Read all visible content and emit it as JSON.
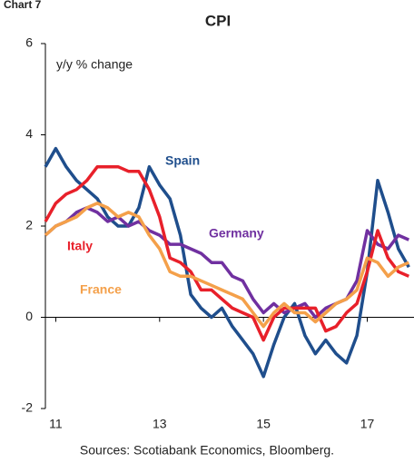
{
  "chart_data": {
    "type": "line",
    "chart_label": "Chart 7",
    "title": "CPI",
    "y_label": "y/y % change",
    "source": "Sources: Scotiabank Economics, Bloomberg.",
    "x": [
      10.8,
      11.0,
      11.2,
      11.4,
      11.6,
      11.8,
      12.0,
      12.2,
      12.4,
      12.6,
      12.8,
      13.0,
      13.2,
      13.4,
      13.6,
      13.8,
      14.0,
      14.2,
      14.4,
      14.6,
      14.8,
      15.0,
      15.2,
      15.4,
      15.6,
      15.8,
      16.0,
      16.2,
      16.4,
      16.6,
      16.8,
      17.0,
      17.2,
      17.4,
      17.6,
      17.8
    ],
    "xlim": [
      10.8,
      17.9
    ],
    "xticks": [
      11,
      13,
      15,
      17
    ],
    "ylim": [
      -2,
      6
    ],
    "yticks": [
      -2,
      0,
      2,
      4,
      6
    ],
    "series": [
      {
        "name": "Spain",
        "color": "#1f4e8c",
        "values": [
          3.3,
          3.7,
          3.3,
          3.0,
          2.8,
          2.6,
          2.2,
          2.0,
          2.0,
          2.4,
          3.3,
          2.9,
          2.6,
          1.8,
          0.5,
          0.2,
          0.0,
          0.2,
          -0.2,
          -0.5,
          -0.8,
          -1.3,
          -0.6,
          0.0,
          0.3,
          -0.4,
          -0.8,
          -0.5,
          -0.8,
          -1.0,
          -0.4,
          1.0,
          3.0,
          2.3,
          1.5,
          1.1
        ]
      },
      {
        "name": "Germany",
        "color": "#7030a0",
        "values": [
          1.8,
          2.0,
          2.1,
          2.3,
          2.4,
          2.3,
          2.1,
          2.2,
          2.0,
          2.1,
          1.9,
          1.8,
          1.6,
          1.6,
          1.5,
          1.4,
          1.2,
          1.2,
          0.9,
          0.8,
          0.4,
          0.1,
          0.3,
          0.1,
          0.2,
          0.3,
          0.0,
          0.2,
          0.3,
          0.4,
          0.8,
          1.9,
          1.6,
          1.5,
          1.8,
          1.7
        ]
      },
      {
        "name": "Italy",
        "color": "#e8202a",
        "values": [
          2.1,
          2.5,
          2.7,
          2.8,
          3.0,
          3.3,
          3.3,
          3.3,
          3.2,
          3.2,
          2.8,
          2.2,
          1.3,
          1.2,
          1.0,
          0.6,
          0.6,
          0.4,
          0.2,
          0.1,
          0.0,
          -0.5,
          0.0,
          0.2,
          0.2,
          0.2,
          0.2,
          -0.3,
          -0.2,
          0.1,
          0.3,
          1.0,
          1.9,
          1.3,
          1.0,
          0.9
        ]
      },
      {
        "name": "France",
        "color": "#f4a04a",
        "values": [
          1.8,
          2.0,
          2.1,
          2.2,
          2.4,
          2.5,
          2.4,
          2.2,
          2.3,
          2.2,
          1.8,
          1.5,
          1.0,
          0.9,
          0.9,
          0.8,
          0.7,
          0.6,
          0.5,
          0.4,
          0.1,
          -0.2,
          0.1,
          0.3,
          0.1,
          0.1,
          -0.1,
          0.1,
          0.3,
          0.4,
          0.6,
          1.3,
          1.2,
          0.9,
          1.1,
          1.2
        ]
      }
    ]
  }
}
